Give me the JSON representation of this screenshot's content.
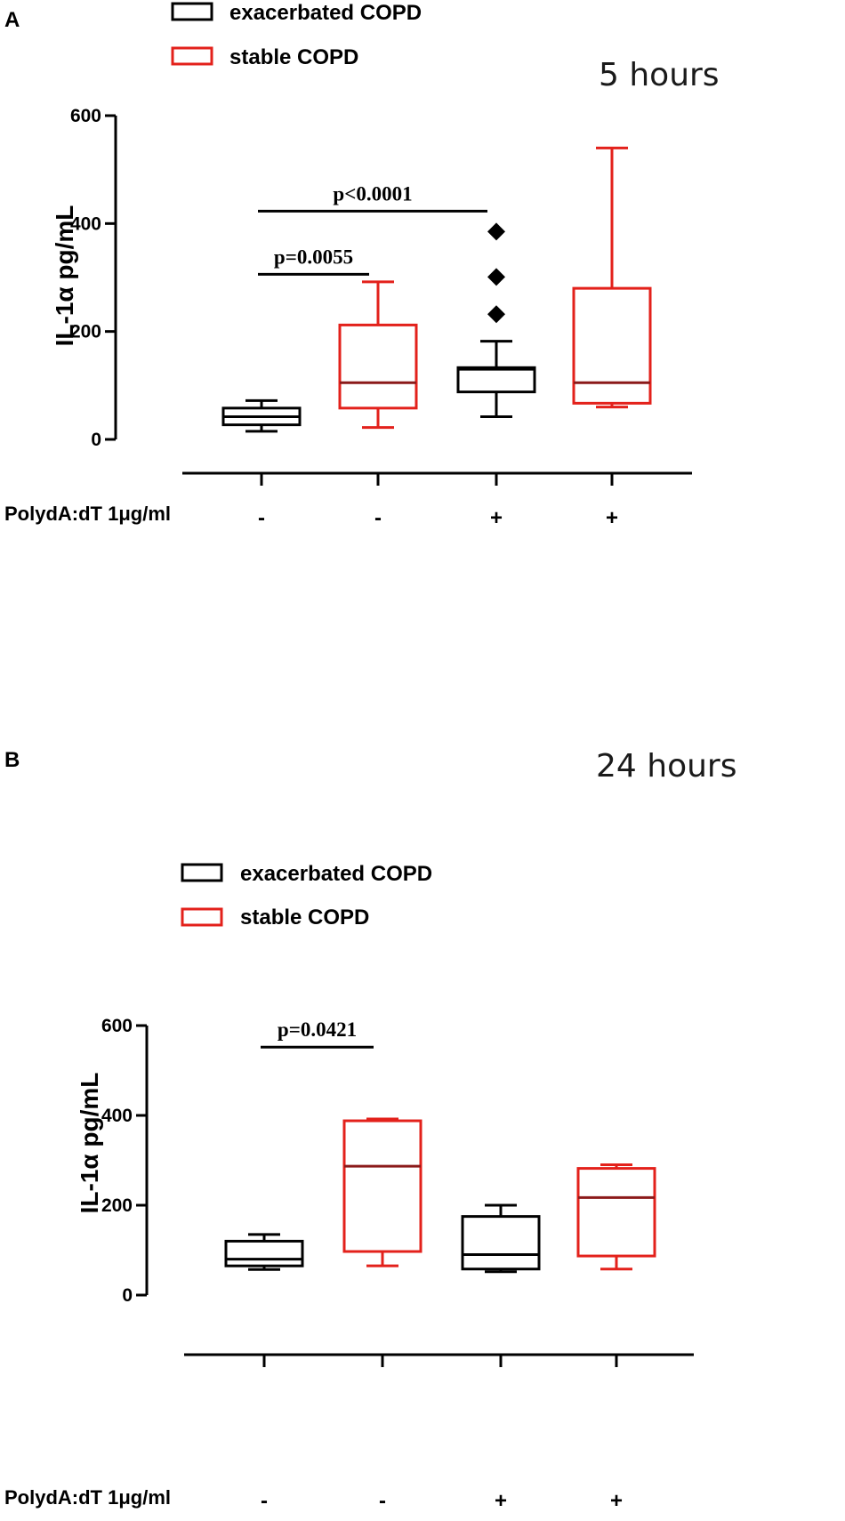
{
  "colors": {
    "exacerbated": "#000000",
    "stable": "#e3211b",
    "stable_median": "#8b1a1a"
  },
  "legend": {
    "exacerbated_label": "exacerbated COPD",
    "stable_label": "stable COPD"
  },
  "chart_data": [
    {
      "panel": "A",
      "time_label": "5 hours",
      "type": "box",
      "ylabel": "IL-1α pg/mL",
      "ylim": [
        0,
        600
      ],
      "yticks": [
        0,
        200,
        400,
        600
      ],
      "treatment_label": "PolydA:dT 1μg/ml",
      "groups": [
        {
          "treatment": "-",
          "series": "exacerbated COPD",
          "whisker_low": 15,
          "q1": 27,
          "median": 42,
          "q3": 58,
          "whisker_high": 72,
          "outliers": []
        },
        {
          "treatment": "-",
          "series": "stable COPD",
          "whisker_low": 22,
          "q1": 58,
          "median": 105,
          "q3": 212,
          "whisker_high": 292,
          "outliers": []
        },
        {
          "treatment": "+",
          "series": "exacerbated COPD",
          "whisker_low": 42,
          "q1": 88,
          "median": 130,
          "q3": 133,
          "whisker_high": 182,
          "outliers": [
            232,
            301,
            385
          ]
        },
        {
          "treatment": "+",
          "series": "stable COPD",
          "whisker_low": 60,
          "q1": 67,
          "median": 105,
          "q3": 280,
          "whisker_high": 540,
          "outliers": []
        }
      ],
      "annotations": [
        {
          "text": "p=0.0055",
          "from_group": 1,
          "to_group": 2,
          "y": 306
        },
        {
          "text": "p<0.0001",
          "from_group": 1,
          "to_group": 3,
          "y": 423
        }
      ]
    },
    {
      "panel": "B",
      "time_label": "24 hours",
      "type": "box",
      "ylabel": "IL-1α pg/mL",
      "ylim": [
        0,
        600
      ],
      "yticks": [
        0,
        200,
        400,
        600
      ],
      "treatment_label": "PolydA:dT 1μg/ml",
      "groups": [
        {
          "treatment": "-",
          "series": "exacerbated COPD",
          "whisker_low": 57,
          "q1": 65,
          "median": 80,
          "q3": 120,
          "whisker_high": 135,
          "outliers": []
        },
        {
          "treatment": "-",
          "series": "stable COPD",
          "whisker_low": 65,
          "q1": 97,
          "median": 287,
          "q3": 388,
          "whisker_high": 392,
          "outliers": []
        },
        {
          "treatment": "+",
          "series": "exacerbated COPD",
          "whisker_low": 52,
          "q1": 58,
          "median": 90,
          "q3": 175,
          "whisker_high": 200,
          "outliers": []
        },
        {
          "treatment": "+",
          "series": "stable COPD",
          "whisker_low": 58,
          "q1": 87,
          "median": 217,
          "q3": 282,
          "whisker_high": 290,
          "outliers": []
        }
      ],
      "annotations": [
        {
          "text": "p=0.0421",
          "from_group": 1,
          "to_group": 2,
          "y": 552
        }
      ]
    }
  ]
}
